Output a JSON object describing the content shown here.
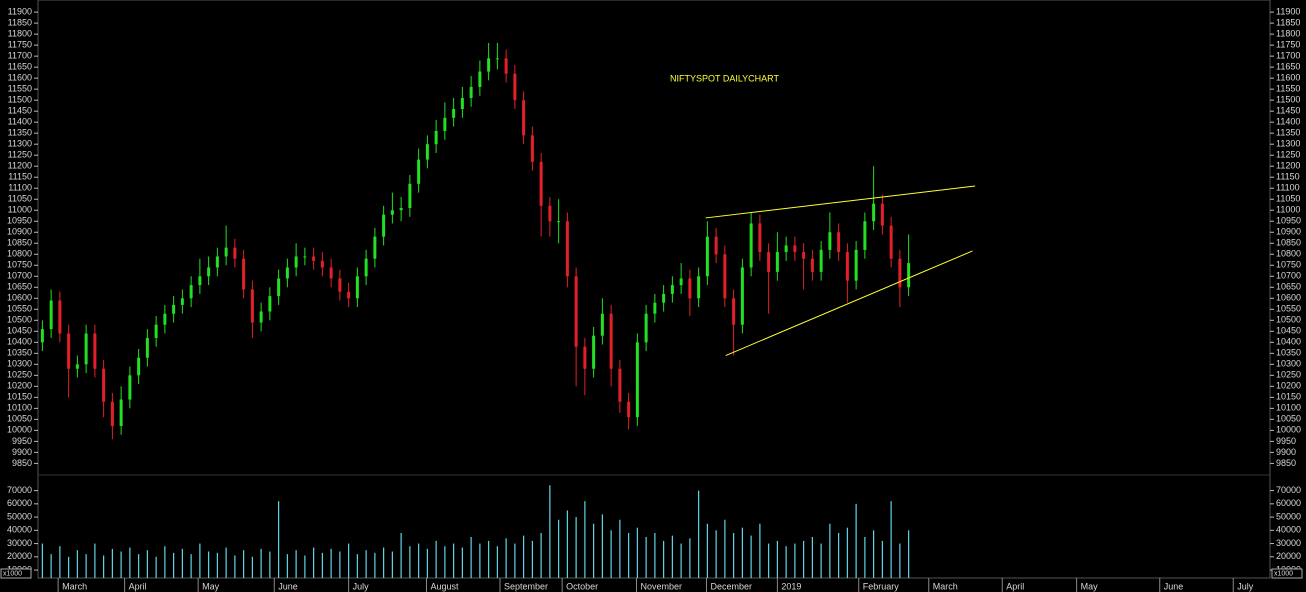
{
  "chart_data": {
    "type": "candlestick",
    "title": "NIFTYSPOT DAILYCHART",
    "up_color": "#22e022",
    "down_color": "#e3202a",
    "xlim": [
      -0.5,
      140.3
    ],
    "xticks": [
      {
        "value": 1.8,
        "label": "March"
      },
      {
        "value": 9.4,
        "label": "April"
      },
      {
        "value": 17.8,
        "label": "May"
      },
      {
        "value": 26.5,
        "label": "June"
      },
      {
        "value": 35.0,
        "label": "July"
      },
      {
        "value": 43.9,
        "label": "August"
      },
      {
        "value": 52.3,
        "label": "September"
      },
      {
        "value": 59.4,
        "label": "October"
      },
      {
        "value": 67.9,
        "label": "November"
      },
      {
        "value": 75.9,
        "label": "December"
      },
      {
        "value": 84.0,
        "label": "2019"
      },
      {
        "value": 93.3,
        "label": "February"
      },
      {
        "value": 101.3,
        "label": "March"
      },
      {
        "value": 109.7,
        "label": "April"
      },
      {
        "value": 118.2,
        "label": "May"
      },
      {
        "value": 127.7,
        "label": "June"
      },
      {
        "value": 136.1,
        "label": "July"
      }
    ],
    "ylim": [
      9820,
      11955
    ],
    "yticks": [
      9850,
      9900,
      9950,
      10000,
      10050,
      10100,
      10150,
      10200,
      10250,
      10300,
      10350,
      10400,
      10450,
      10500,
      10550,
      10600,
      10650,
      10700,
      10750,
      10800,
      10850,
      10900,
      10950,
      11000,
      11050,
      11100,
      11150,
      11200,
      11250,
      11300,
      11350,
      11400,
      11450,
      11500,
      11550,
      11600,
      11650,
      11700,
      11750,
      11800,
      11850,
      11900
    ],
    "open": [
      10400,
      10460,
      10590,
      10440,
      10280,
      10300,
      10440,
      10280,
      10130,
      10020,
      10140,
      10250,
      10330,
      10420,
      10480,
      10530,
      10570,
      10600,
      10660,
      10700,
      10740,
      10790,
      10830,
      10780,
      10640,
      10490,
      10540,
      10610,
      10690,
      10740,
      10790,
      10790,
      10770,
      10740,
      10690,
      10630,
      10600,
      10700,
      10780,
      10880,
      10980,
      11000,
      11010,
      11120,
      11230,
      11300,
      11360,
      11420,
      11460,
      11510,
      11560,
      11630,
      11690,
      11690,
      11620,
      11500,
      11340,
      11220,
      11020,
      10950,
      10950,
      10700,
      10380,
      10280,
      10430,
      10530,
      10280,
      10130,
      10060,
      10400,
      10530,
      10580,
      10620,
      10660,
      10690,
      10600,
      10700,
      10880,
      10800,
      10600,
      10480,
      10740,
      10940,
      10810,
      10720,
      10810,
      10840,
      10810,
      10780,
      10720,
      10820,
      10900,
      10810,
      10680,
      10820,
      10950,
      11030,
      10930,
      10780,
      10650
    ],
    "high": [
      10500,
      10640,
      10630,
      10480,
      10340,
      10480,
      10480,
      10320,
      10170,
      10200,
      10290,
      10370,
      10460,
      10520,
      10570,
      10610,
      10640,
      10700,
      10780,
      10790,
      10830,
      10930,
      10870,
      10820,
      10680,
      10580,
      10650,
      10730,
      10780,
      10850,
      10830,
      10830,
      10810,
      10780,
      10730,
      10670,
      10740,
      10820,
      10920,
      11020,
      11080,
      11060,
      11160,
      11280,
      11340,
      11410,
      11490,
      11510,
      11560,
      11610,
      11680,
      11760,
      11760,
      11730,
      11660,
      11540,
      11380,
      11260,
      11060,
      11050,
      10990,
      10740,
      10420,
      10470,
      10600,
      10570,
      10320,
      10170,
      10440,
      10570,
      10620,
      10660,
      10700,
      10760,
      10730,
      10740,
      10950,
      10920,
      10840,
      10640,
      10780,
      10990,
      10980,
      10850,
      10900,
      10880,
      10880,
      10850,
      10820,
      10860,
      10990,
      10940,
      10850,
      10860,
      10990,
      11200,
      11070,
      10970,
      10820,
      10890
    ],
    "low": [
      10360,
      10420,
      10400,
      10150,
      10240,
      10260,
      10240,
      10060,
      9960,
      9980,
      10100,
      10210,
      10290,
      10380,
      10440,
      10490,
      10530,
      10560,
      10620,
      10660,
      10700,
      10750,
      10740,
      10600,
      10420,
      10450,
      10500,
      10570,
      10650,
      10700,
      10750,
      10730,
      10700,
      10650,
      10590,
      10560,
      10560,
      10660,
      10740,
      10840,
      10940,
      10950,
      10970,
      11080,
      11190,
      11260,
      11320,
      11380,
      11420,
      11470,
      11520,
      11590,
      11640,
      11580,
      11460,
      11300,
      11180,
      10880,
      10880,
      10850,
      10650,
      10200,
      10160,
      10240,
      10390,
      10200,
      10080,
      10005,
      10020,
      10360,
      10490,
      10540,
      10580,
      10620,
      10520,
      10560,
      10660,
      10760,
      10560,
      10340,
      10440,
      10700,
      10770,
      10530,
      10680,
      10770,
      10770,
      10640,
      10680,
      10680,
      10780,
      10770,
      10580,
      10640,
      10780,
      10910,
      10890,
      10740,
      10560,
      10610
    ],
    "close": [
      10460,
      10590,
      10440,
      10280,
      10300,
      10440,
      10280,
      10130,
      10020,
      10140,
      10250,
      10330,
      10420,
      10480,
      10530,
      10570,
      10600,
      10660,
      10700,
      10740,
      10790,
      10830,
      10780,
      10640,
      10490,
      10540,
      10610,
      10690,
      10740,
      10790,
      10790,
      10770,
      10740,
      10690,
      10630,
      10600,
      10700,
      10780,
      10880,
      10980,
      11000,
      11010,
      11120,
      11230,
      11300,
      11360,
      11420,
      11460,
      11510,
      11560,
      11630,
      11690,
      11690,
      11620,
      11500,
      11340,
      11220,
      11020,
      10950,
      10950,
      10700,
      10380,
      10280,
      10430,
      10530,
      10280,
      10130,
      10060,
      10400,
      10530,
      10580,
      10620,
      10660,
      10690,
      10600,
      10700,
      10880,
      10800,
      10600,
      10480,
      10740,
      10940,
      10810,
      10720,
      10810,
      10840,
      10810,
      10780,
      10720,
      10820,
      10900,
      10810,
      10680,
      10820,
      10950,
      11030,
      10930,
      10780,
      10650,
      10760
    ],
    "trendlines": [
      {
        "color": "#ffff33",
        "x": [
          75.8,
          106.6
        ],
        "y": [
          10965,
          11110
        ]
      },
      {
        "color": "#ffff33",
        "x": [
          78.1,
          106.3
        ],
        "y": [
          10340,
          10815
        ]
      }
    ],
    "volume": {
      "color": "#5fd8e8",
      "unit_label": "x1000",
      "ylim": [
        4000,
        78000
      ],
      "yticks": [
        10000,
        20000,
        30000,
        40000,
        50000,
        60000,
        70000
      ],
      "values": [
        30000,
        22000,
        28000,
        20000,
        25000,
        22000,
        30000,
        21000,
        26000,
        24000,
        27000,
        22000,
        25000,
        20000,
        28000,
        23000,
        26000,
        22000,
        30000,
        24000,
        23000,
        27000,
        21000,
        25000,
        20000,
        26000,
        24000,
        62000,
        22000,
        25000,
        21000,
        27000,
        23000,
        26000,
        24000,
        30000,
        22000,
        25000,
        23000,
        27000,
        24000,
        38000,
        28000,
        30000,
        26000,
        32000,
        28000,
        30000,
        27000,
        35000,
        30000,
        32000,
        28000,
        34000,
        30000,
        36000,
        32000,
        38000,
        74000,
        48000,
        55000,
        50000,
        62000,
        45000,
        52000,
        40000,
        48000,
        38000,
        42000,
        35000,
        38000,
        32000,
        36000,
        30000,
        34000,
        70000,
        45000,
        40000,
        48000,
        38000,
        42000,
        36000,
        45000,
        30000,
        32000,
        28000,
        30000,
        32000,
        35000,
        30000,
        45000,
        38000,
        42000,
        60000,
        35000,
        40000,
        32000,
        62000,
        30000,
        40000
      ]
    }
  }
}
